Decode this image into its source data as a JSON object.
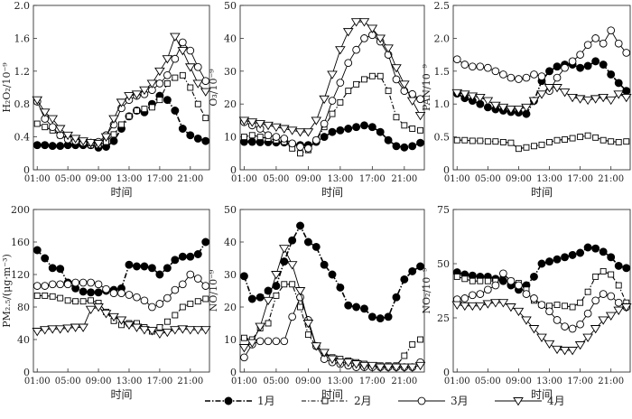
{
  "chart_data": [
    {
      "type": "line",
      "id": "h2o2",
      "ylabel": "H₂O₂/10⁻⁹",
      "xlabel": "时间",
      "ylim": [
        0,
        2.0
      ],
      "yticks": [
        "0",
        "0.4",
        "0.8",
        "1.2",
        "1.6",
        "2.0"
      ],
      "ytick_values": [
        0,
        0.4,
        0.8,
        1.2,
        1.6,
        2.0
      ],
      "series": [
        {
          "name": "1月",
          "values": [
            0.3,
            0.3,
            0.29,
            0.29,
            0.3,
            0.3,
            0.3,
            0.3,
            0.27,
            0.28,
            0.35,
            0.5,
            0.65,
            0.72,
            0.7,
            0.8,
            0.9,
            0.85,
            0.72,
            0.5,
            0.42,
            0.38,
            0.35
          ]
        },
        {
          "name": "2月",
          "values": [
            0.56,
            0.52,
            0.48,
            0.42,
            0.38,
            0.35,
            0.33,
            0.3,
            0.3,
            0.34,
            0.43,
            0.55,
            0.65,
            0.72,
            0.74,
            0.76,
            0.85,
            1.05,
            1.12,
            1.15,
            1.0,
            0.8,
            0.63
          ]
        },
        {
          "name": "3月",
          "values": [
            0.83,
            0.62,
            0.52,
            0.42,
            0.37,
            0.35,
            0.33,
            0.33,
            0.34,
            0.42,
            0.55,
            0.75,
            0.85,
            0.9,
            0.92,
            0.97,
            1.05,
            1.15,
            1.35,
            1.55,
            1.45,
            1.25,
            1.08
          ]
        },
        {
          "name": "4月",
          "values": [
            0.85,
            0.7,
            0.62,
            0.5,
            0.42,
            0.38,
            0.35,
            0.33,
            0.32,
            0.4,
            0.62,
            0.82,
            0.9,
            0.92,
            0.97,
            1.05,
            1.2,
            1.35,
            1.62,
            1.45,
            1.25,
            1.05,
            0.95
          ]
        }
      ]
    },
    {
      "type": "line",
      "id": "o3",
      "ylabel": "O₃/10⁻⁹",
      "xlabel": "时间",
      "ylim": [
        0,
        50
      ],
      "yticks": [
        "0",
        "10",
        "20",
        "30",
        "40",
        "50"
      ],
      "ytick_values": [
        0,
        10,
        20,
        30,
        40,
        50
      ],
      "series": [
        {
          "name": "1月",
          "values": [
            8.5,
            8.5,
            8.4,
            8.4,
            8.3,
            8.3,
            7.8,
            7.5,
            7.5,
            8.5,
            10,
            11.5,
            12,
            12.5,
            13,
            13.5,
            13,
            11.5,
            9,
            7.2,
            6.8,
            7.2,
            8.2
          ]
        },
        {
          "name": "2月",
          "values": [
            10,
            10.5,
            10,
            9.5,
            9,
            8.5,
            6.5,
            5,
            6,
            9,
            13,
            17,
            20.5,
            24,
            26,
            27.5,
            28.5,
            28.5,
            24,
            16,
            13.5,
            12.5,
            12
          ]
        },
        {
          "name": "3月",
          "values": [
            14.5,
            13.5,
            12.5,
            10.5,
            10,
            9.5,
            8,
            7,
            6.5,
            9,
            14,
            21,
            26.5,
            32.5,
            36.5,
            40,
            41,
            39,
            35,
            27.5,
            24,
            23,
            21.5
          ]
        },
        {
          "name": "4月",
          "values": [
            15,
            14.5,
            14,
            13.5,
            13,
            12.5,
            12,
            11.5,
            11.5,
            15,
            21.5,
            29,
            36.5,
            42,
            45,
            45,
            43,
            40,
            37,
            31,
            26,
            21,
            16.5
          ]
        }
      ]
    },
    {
      "type": "line",
      "id": "pan",
      "ylabel": "PAN/10⁻⁹",
      "xlabel": "时间",
      "ylim": [
        0,
        2.5
      ],
      "yticks": [
        "0",
        "0.5",
        "1.0",
        "1.5",
        "2.0",
        "2.5"
      ],
      "ytick_values": [
        0,
        0.5,
        1.0,
        1.5,
        2.0,
        2.5
      ],
      "series": [
        {
          "name": "1月",
          "values": [
            1.16,
            1.09,
            1.05,
            1.0,
            0.95,
            0.92,
            0.9,
            0.88,
            0.87,
            0.85,
            1.05,
            1.35,
            1.5,
            1.57,
            1.6,
            1.6,
            1.55,
            1.58,
            1.65,
            1.6,
            1.45,
            1.32,
            1.2
          ]
        },
        {
          "name": "2月",
          "values": [
            0.45,
            0.45,
            0.44,
            0.44,
            0.43,
            0.43,
            0.42,
            0.41,
            0.32,
            0.34,
            0.36,
            0.38,
            0.42,
            0.45,
            0.46,
            0.48,
            0.5,
            0.52,
            0.49,
            0.45,
            0.43,
            0.42,
            0.43
          ]
        },
        {
          "name": "3月",
          "values": [
            1.68,
            1.6,
            1.57,
            1.57,
            1.55,
            1.5,
            1.45,
            1.4,
            1.38,
            1.4,
            1.45,
            1.42,
            1.2,
            1.4,
            1.55,
            1.65,
            1.75,
            1.9,
            2.0,
            1.92,
            2.12,
            1.92,
            1.78
          ]
        },
        {
          "name": "4月",
          "values": [
            1.17,
            1.15,
            1.12,
            1.1,
            1.05,
            0.98,
            0.95,
            0.92,
            0.92,
            0.95,
            1.05,
            1.15,
            1.25,
            1.25,
            1.18,
            1.1,
            1.08,
            1.06,
            1.08,
            1.1,
            1.06,
            1.15,
            1.1
          ]
        }
      ]
    },
    {
      "type": "line",
      "id": "pm25",
      "ylabel": "PM₂.₅/(μg·m⁻³)",
      "xlabel": "时间",
      "ylim": [
        0,
        200
      ],
      "yticks": [
        "0",
        "40",
        "80",
        "120",
        "160",
        "200"
      ],
      "ytick_values": [
        0,
        40,
        80,
        120,
        160,
        200
      ],
      "series": [
        {
          "name": "1月",
          "values": [
            150,
            140,
            128,
            127,
            110,
            103,
            99,
            98,
            98,
            100,
            101,
            103,
            132,
            130,
            130,
            128,
            120,
            128,
            138,
            142,
            142,
            145,
            160
          ]
        },
        {
          "name": "2月",
          "values": [
            94,
            94,
            93,
            91,
            88,
            87,
            87,
            88,
            85,
            74,
            63,
            58,
            60,
            60,
            55,
            50,
            55,
            62,
            70,
            80,
            84,
            87,
            90
          ]
        },
        {
          "name": "3月",
          "values": [
            106,
            106,
            108,
            108,
            108,
            110,
            110,
            110,
            108,
            102,
            97,
            97,
            95,
            92,
            88,
            80,
            84,
            91,
            101,
            108,
            120,
            115,
            106
          ]
        },
        {
          "name": "4月",
          "values": [
            50,
            52,
            53,
            53,
            54,
            55,
            55,
            77,
            80,
            72,
            68,
            64,
            58,
            55,
            52,
            51,
            47,
            49,
            52,
            53,
            52,
            52,
            52
          ]
        }
      ]
    },
    {
      "type": "line",
      "id": "no",
      "ylabel": "NO/10⁻⁹",
      "xlabel": "时间",
      "ylim": [
        0,
        50
      ],
      "yticks": [
        "0",
        "10",
        "20",
        "30",
        "40",
        "50"
      ],
      "ytick_values": [
        0,
        10,
        20,
        30,
        40,
        50
      ],
      "series": [
        {
          "name": "1月",
          "values": [
            29.5,
            22.5,
            23,
            25,
            26.5,
            34,
            40.5,
            45,
            40,
            38.5,
            33,
            30,
            26,
            20.5,
            20,
            19.5,
            17,
            16.5,
            17,
            23,
            28.5,
            31,
            32.5
          ]
        },
        {
          "name": "2月",
          "values": [
            10.5,
            10,
            13.5,
            15,
            23.5,
            27,
            27,
            20,
            11.5,
            8,
            6,
            4.5,
            4,
            3.5,
            3,
            2.5,
            2,
            2,
            2,
            2,
            5,
            8.5,
            10
          ]
        },
        {
          "name": "3月",
          "values": [
            4.5,
            8.5,
            9.5,
            9.5,
            9.5,
            9.5,
            17,
            23,
            16,
            8,
            4,
            3,
            2.5,
            2,
            1.5,
            1.5,
            1.5,
            1.5,
            1.5,
            1.5,
            1.5,
            1.5,
            3
          ]
        },
        {
          "name": "4月",
          "values": [
            7.5,
            9,
            14,
            22,
            30,
            38,
            33,
            25,
            15,
            8,
            6,
            4,
            3,
            3,
            2.5,
            2,
            2,
            1.5,
            1.5,
            1.5,
            1.5,
            1.5,
            2
          ]
        }
      ]
    },
    {
      "type": "line",
      "id": "no2",
      "ylabel": "NO₂/10⁻⁹",
      "xlabel": "时间",
      "ylim": [
        0,
        75
      ],
      "yticks": [
        "0",
        "25",
        "50",
        "75"
      ],
      "ytick_values": [
        0,
        25,
        50,
        75
      ],
      "series": [
        {
          "name": "1月",
          "values": [
            46,
            45,
            44.5,
            44,
            44,
            43,
            42,
            40,
            38,
            40,
            44,
            50,
            51,
            52,
            53,
            54,
            55,
            57.5,
            57,
            55.5,
            53,
            49,
            48
          ]
        },
        {
          "name": "2月",
          "values": [
            44,
            43,
            42,
            42,
            42,
            42,
            45,
            42,
            41,
            38,
            33,
            31,
            30.5,
            31,
            30.5,
            30,
            32,
            37,
            44,
            46.5,
            45,
            40,
            32
          ]
        },
        {
          "name": "3月",
          "values": [
            33.5,
            34,
            35.5,
            36,
            38,
            40,
            45.5,
            42,
            40,
            36,
            34,
            31,
            28,
            24,
            21,
            20,
            22,
            27,
            33,
            36,
            35,
            32,
            30
          ]
        },
        {
          "name": "4月",
          "values": [
            31,
            30.5,
            30.5,
            30.5,
            31.5,
            32,
            32,
            30,
            28,
            24,
            20,
            16,
            13,
            10.5,
            10,
            10,
            12.5,
            16,
            20,
            24,
            26,
            28.5,
            30
          ]
        }
      ]
    }
  ],
  "x_tick_labels": [
    "01:00",
    "05:00",
    "09:00",
    "13:00",
    "17:00",
    "21:00"
  ],
  "legend": [
    {
      "name": "1月",
      "style": "filled-circle-dashdot"
    },
    {
      "name": "2月",
      "style": "open-square-dashdot"
    },
    {
      "name": "3月",
      "style": "open-circle-solid"
    },
    {
      "name": "4月",
      "style": "open-triangle-solid"
    }
  ]
}
